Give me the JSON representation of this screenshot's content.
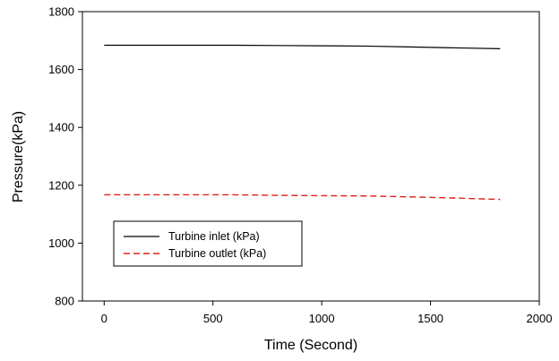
{
  "chart_data": {
    "type": "line",
    "title": "",
    "xlabel": "Time (Second)",
    "ylabel": "Pressure(kPa)",
    "xlim": [
      -100,
      2000
    ],
    "ylim": [
      800,
      1800
    ],
    "xticks": [
      0,
      500,
      1000,
      1500,
      2000
    ],
    "yticks": [
      800,
      1000,
      1200,
      1400,
      1600,
      1800
    ],
    "grid": false,
    "legend_position": "lower-left",
    "series": [
      {
        "name": "Turbine inlet (kPa)",
        "color": "#000000",
        "dash": "solid",
        "x": [
          0,
          200,
          400,
          600,
          800,
          1000,
          1200,
          1400,
          1600,
          1820
        ],
        "y": [
          1684,
          1684,
          1684,
          1684,
          1683,
          1682,
          1681,
          1678,
          1675,
          1672
        ]
      },
      {
        "name": "Turbine outlet (kPa)",
        "color": "#e0201c",
        "dash": "dashed",
        "x": [
          0,
          200,
          400,
          600,
          800,
          1000,
          1200,
          1400,
          1600,
          1820
        ],
        "y": [
          1167,
          1167,
          1167,
          1167,
          1165,
          1164,
          1163,
          1160,
          1156,
          1151
        ]
      }
    ]
  }
}
